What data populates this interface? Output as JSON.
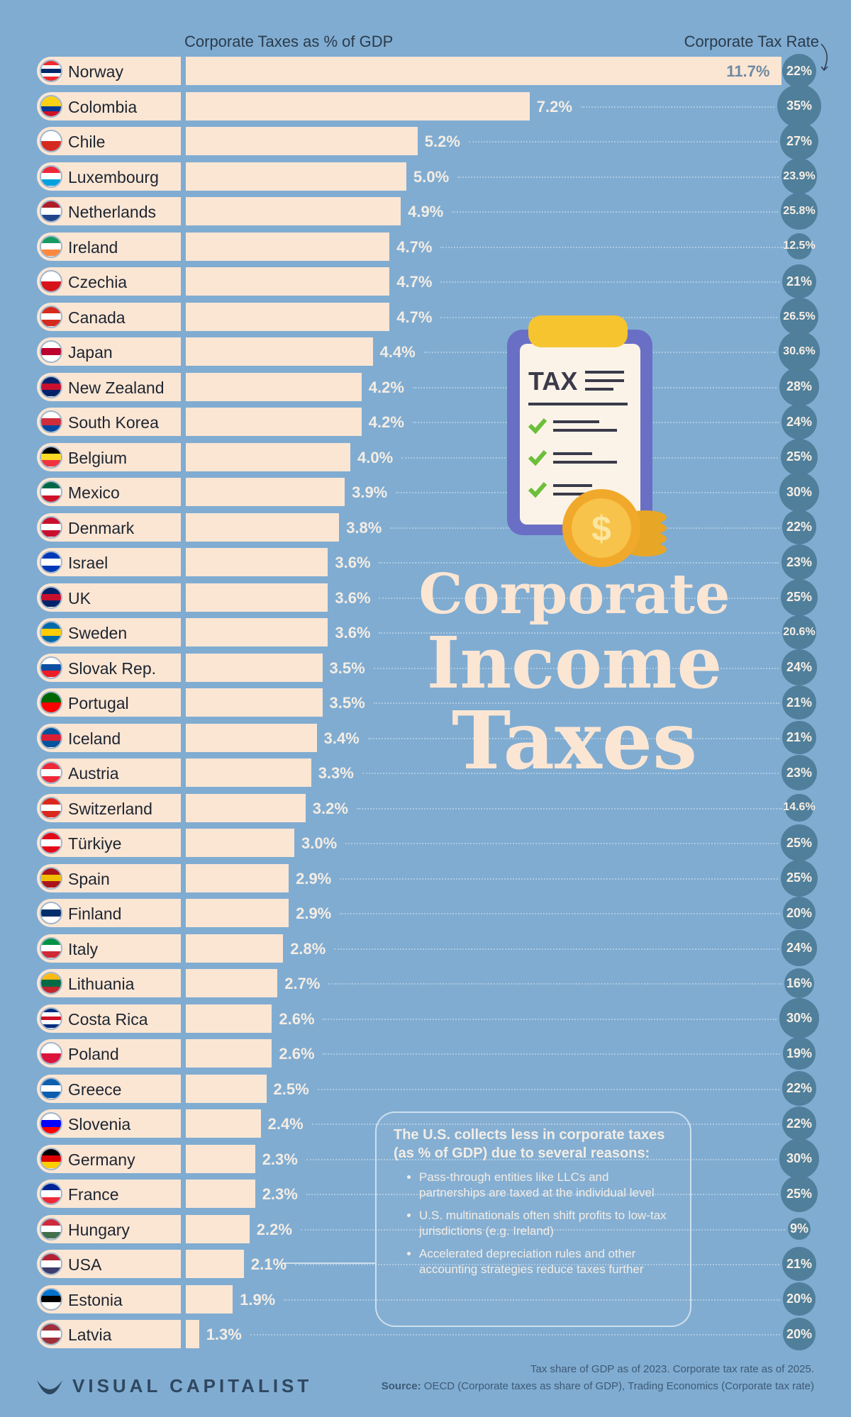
{
  "chart_data": {
    "type": "bar",
    "xlabel": "Corporate Taxes as % of GDP",
    "secondary_label": "Corporate Tax Rate",
    "categories": [
      "Norway",
      "Colombia",
      "Chile",
      "Luxembourg",
      "Netherlands",
      "Ireland",
      "Czechia",
      "Canada",
      "Japan",
      "New Zealand",
      "South Korea",
      "Belgium",
      "Mexico",
      "Denmark",
      "Israel",
      "UK",
      "Sweden",
      "Slovak Rep.",
      "Portugal",
      "Iceland",
      "Austria",
      "Switzerland",
      "Türkiye",
      "Spain",
      "Finland",
      "Italy",
      "Lithuania",
      "Costa Rica",
      "Poland",
      "Greece",
      "Slovenia",
      "Germany",
      "France",
      "Hungary",
      "USA",
      "Estonia",
      "Latvia"
    ],
    "values": [
      11.7,
      7.2,
      5.2,
      5.0,
      4.9,
      4.7,
      4.7,
      4.7,
      4.4,
      4.2,
      4.2,
      4.0,
      3.9,
      3.8,
      3.6,
      3.6,
      3.6,
      3.5,
      3.5,
      3.4,
      3.3,
      3.2,
      3.0,
      2.9,
      2.9,
      2.8,
      2.7,
      2.6,
      2.6,
      2.5,
      2.4,
      2.3,
      2.3,
      2.2,
      2.1,
      1.9,
      1.3
    ],
    "value_labels": [
      "11.7%",
      "7.2%",
      "5.2%",
      "5.0%",
      "4.9%",
      "4.7%",
      "4.7%",
      "4.7%",
      "4.4%",
      "4.2%",
      "4.2%",
      "4.0%",
      "3.9%",
      "3.8%",
      "3.6%",
      "3.6%",
      "3.6%",
      "3.5%",
      "3.5%",
      "3.4%",
      "3.3%",
      "3.2%",
      "3.0%",
      "2.9%",
      "2.9%",
      "2.8%",
      "2.7%",
      "2.6%",
      "2.6%",
      "2.5%",
      "2.4%",
      "2.3%",
      "2.3%",
      "2.2%",
      "2.1%",
      "1.9%",
      "1.3%"
    ],
    "tax_rates": [
      22,
      35,
      27,
      23.9,
      25.8,
      12.5,
      21,
      26.5,
      30.6,
      28,
      24,
      25,
      30,
      22,
      23,
      25,
      20.6,
      24,
      21,
      21,
      23,
      14.6,
      25,
      25,
      20,
      24,
      16,
      30,
      19,
      22,
      22,
      30,
      25,
      9,
      21,
      20,
      20
    ],
    "tax_rate_labels": [
      "22%",
      "35%",
      "27%",
      "23.9%",
      "25.8%",
      "12.5%",
      "21%",
      "26.5%",
      "30.6%",
      "28%",
      "24%",
      "25%",
      "30%",
      "22%",
      "23%",
      "25%",
      "20.6%",
      "24%",
      "21%",
      "21%",
      "23%",
      "14.6%",
      "25%",
      "25%",
      "20%",
      "24%",
      "16%",
      "30%",
      "19%",
      "22%",
      "22%",
      "30%",
      "25%",
      "9%",
      "21%",
      "20%",
      "20%"
    ],
    "orientation": "horizontal"
  },
  "colors": {
    "background": "#80acd1",
    "bar": "#fbe6d4",
    "circle": "#4f7f9a",
    "title": "#fbe6d4"
  },
  "flags": [
    [
      "#ef2b2d",
      "#ffffff",
      "#002868",
      "#ffffff",
      "#ef2b2d"
    ],
    [
      "#fcd116",
      "#fcd116",
      "#003893",
      "#ce1126"
    ],
    [
      "#ffffff",
      "#d52b1e"
    ],
    [
      "#ed2939",
      "#ffffff",
      "#00a1de"
    ],
    [
      "#ae1c28",
      "#ffffff",
      "#21468b"
    ],
    [
      "#169b62",
      "#ffffff",
      "#ff883e"
    ],
    [
      "#ffffff",
      "#d7141a"
    ],
    [
      "#d52b1e",
      "#ffffff",
      "#d52b1e"
    ],
    [
      "#ffffff",
      "#bc002d",
      "#ffffff"
    ],
    [
      "#012169",
      "#c8102e",
      "#012169"
    ],
    [
      "#ffffff",
      "#cd2e3a",
      "#0047a0"
    ],
    [
      "#000000",
      "#fdda24",
      "#ef3340"
    ],
    [
      "#006847",
      "#ffffff",
      "#ce1126"
    ],
    [
      "#c8102e",
      "#ffffff",
      "#c8102e"
    ],
    [
      "#0038b8",
      "#ffffff",
      "#0038b8"
    ],
    [
      "#012169",
      "#c8102e",
      "#012169"
    ],
    [
      "#006aa7",
      "#fecc00",
      "#006aa7"
    ],
    [
      "#ffffff",
      "#0b4ea2",
      "#ee1c25"
    ],
    [
      "#006600",
      "#ff0000"
    ],
    [
      "#02529c",
      "#dc1e35",
      "#02529c"
    ],
    [
      "#ed2939",
      "#ffffff",
      "#ed2939"
    ],
    [
      "#da291c",
      "#ffffff",
      "#da291c"
    ],
    [
      "#e30a17",
      "#ffffff",
      "#e30a17"
    ],
    [
      "#aa151b",
      "#f1bf00",
      "#aa151b"
    ],
    [
      "#ffffff",
      "#002f6c",
      "#ffffff"
    ],
    [
      "#009246",
      "#ffffff",
      "#ce2b37"
    ],
    [
      "#fdb913",
      "#006a44",
      "#c1272d"
    ],
    [
      "#002b7f",
      "#ffffff",
      "#ce1126",
      "#ffffff",
      "#002b7f"
    ],
    [
      "#ffffff",
      "#dc143c"
    ],
    [
      "#0d5eaf",
      "#ffffff",
      "#0d5eaf"
    ],
    [
      "#ffffff",
      "#0000ff",
      "#ff0000"
    ],
    [
      "#000000",
      "#dd0000",
      "#ffce00"
    ],
    [
      "#002395",
      "#ffffff",
      "#ed2939"
    ],
    [
      "#cd2a3e",
      "#ffffff",
      "#436f4d"
    ],
    [
      "#b22234",
      "#ffffff",
      "#3c3b6e"
    ],
    [
      "#0072ce",
      "#000000",
      "#ffffff"
    ],
    [
      "#9e3039",
      "#ffffff",
      "#9e3039"
    ]
  ],
  "title": {
    "line1": "Corporate",
    "line2": "Income",
    "line3": "Taxes"
  },
  "illustration": {
    "clipboard_text": "TAX",
    "coin_symbol": "$"
  },
  "callout": {
    "heading": "The U.S. collects less in corporate taxes (as % of GDP) due to several reasons:",
    "points": [
      "Pass-through entities like LLCs and partnerships are taxed at the individual level",
      "U.S. multinationals often shift profits to low-tax jurisdictions (e.g. Ireland)",
      "Accelerated depreciation rules and other accounting strategies reduce taxes further"
    ]
  },
  "footer": {
    "note": "Tax share of GDP as of 2023. Corporate tax rate as of 2025.",
    "source_label": "Source:",
    "source_text": " OECD (Corporate taxes as share of GDP), Trading Economics (Corporate tax rate)",
    "brand": "VISUAL CAPITALIST"
  }
}
